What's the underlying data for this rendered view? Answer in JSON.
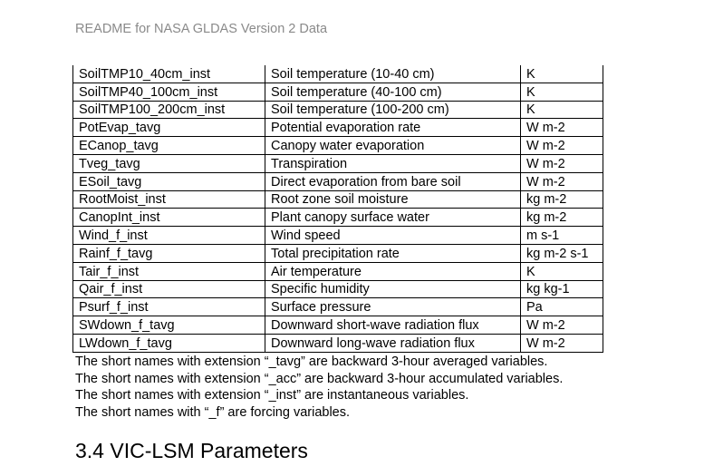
{
  "header": {
    "title": "README for NASA GLDAS Version 2 Data"
  },
  "table": {
    "rows": [
      [
        "SoilTMP10_40cm_inst",
        "Soil temperature (10-40 cm)",
        "K"
      ],
      [
        "SoilTMP40_100cm_inst",
        "Soil temperature (40-100 cm)",
        "K"
      ],
      [
        "SoilTMP100_200cm_inst",
        "Soil temperature (100-200 cm)",
        "K"
      ],
      [
        "PotEvap_tavg",
        "Potential evaporation rate",
        "W m-2"
      ],
      [
        "ECanop_tavg",
        "Canopy water evaporation",
        "W m-2"
      ],
      [
        "Tveg_tavg",
        "Transpiration",
        "W m-2"
      ],
      [
        "ESoil_tavg",
        "Direct evaporation from bare soil",
        "W m-2"
      ],
      [
        "RootMoist_inst",
        "Root zone soil moisture",
        "kg m-2"
      ],
      [
        "CanopInt_inst",
        "Plant canopy surface water",
        "kg m-2"
      ],
      [
        "Wind_f_inst",
        "Wind speed",
        "m s-1"
      ],
      [
        "Rainf_f_tavg",
        "Total precipitation rate",
        "kg m-2 s-1"
      ],
      [
        "Tair_f_inst",
        "Air temperature",
        "K"
      ],
      [
        "Qair_f_inst",
        "Specific humidity",
        "kg kg-1"
      ],
      [
        "Psurf_f_inst",
        "Surface pressure",
        "Pa"
      ],
      [
        "SWdown_f_tavg",
        "Downward short-wave radiation flux",
        "W m-2"
      ],
      [
        "LWdown_f_tavg",
        "Downward long-wave radiation flux",
        "W m-2"
      ]
    ]
  },
  "notes": [
    "The short names with extension “_tavg” are backward 3-hour averaged variables.",
    "The short names with extension “_acc” are backward 3-hour accumulated variables.",
    "The short names with extension “_inst” are instantaneous variables.",
    "The short names with “_f” are forcing variables."
  ],
  "section": {
    "heading": "3.4 VIC-LSM Parameters"
  }
}
